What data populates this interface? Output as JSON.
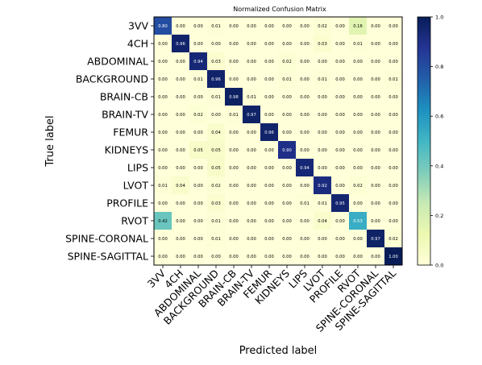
{
  "chart_data": {
    "type": "heatmap",
    "title": "Normalized Confusion Matrix",
    "xlabel": "Predicted label",
    "ylabel": "True label",
    "categories": [
      "3VV",
      "4CH",
      "ABDOMINAL",
      "BACKGROUND",
      "BRAIN-CB",
      "BRAIN-TV",
      "FEMUR",
      "KIDNEYS",
      "LIPS",
      "LVOT",
      "PROFILE",
      "RVOT",
      "SPINE-CORONAL",
      "SPINE-SAGITTAL"
    ],
    "matrix": [
      [
        0.8,
        0.0,
        0.0,
        0.01,
        0.0,
        0.0,
        0.0,
        0.0,
        0.0,
        0.02,
        0.0,
        0.16,
        0.0,
        0.0
      ],
      [
        0.0,
        0.96,
        0.0,
        0.0,
        0.0,
        0.0,
        0.0,
        0.0,
        0.0,
        0.03,
        0.0,
        0.01,
        0.0,
        0.0
      ],
      [
        0.0,
        0.0,
        0.94,
        0.03,
        0.0,
        0.0,
        0.0,
        0.02,
        0.0,
        0.0,
        0.0,
        0.0,
        0.0,
        0.0
      ],
      [
        0.0,
        0.0,
        0.01,
        0.96,
        0.0,
        0.0,
        0.0,
        0.01,
        0.0,
        0.01,
        0.0,
        0.0,
        0.0,
        0.01
      ],
      [
        0.0,
        0.0,
        0.0,
        0.01,
        0.98,
        0.01,
        0.0,
        0.0,
        0.0,
        0.0,
        0.0,
        0.0,
        0.0,
        0.0
      ],
      [
        0.0,
        0.0,
        0.02,
        0.0,
        0.01,
        0.97,
        0.0,
        0.0,
        0.0,
        0.0,
        0.0,
        0.0,
        0.0,
        0.0
      ],
      [
        0.0,
        0.0,
        0.0,
        0.04,
        0.0,
        0.0,
        0.96,
        0.0,
        0.0,
        0.0,
        0.0,
        0.0,
        0.0,
        0.0
      ],
      [
        0.0,
        0.0,
        0.05,
        0.05,
        0.0,
        0.0,
        0.0,
        0.9,
        0.0,
        0.0,
        0.0,
        0.0,
        0.0,
        0.0
      ],
      [
        0.0,
        0.0,
        0.0,
        0.05,
        0.0,
        0.0,
        0.0,
        0.0,
        0.94,
        0.0,
        0.0,
        0.0,
        0.0,
        0.0
      ],
      [
        0.01,
        0.04,
        0.0,
        0.02,
        0.0,
        0.0,
        0.0,
        0.0,
        0.0,
        0.92,
        0.0,
        0.02,
        0.0,
        0.0
      ],
      [
        0.0,
        0.0,
        0.0,
        0.03,
        0.0,
        0.0,
        0.0,
        0.0,
        0.01,
        0.01,
        0.95,
        0.0,
        0.0,
        0.0
      ],
      [
        0.42,
        0.0,
        0.0,
        0.01,
        0.0,
        0.0,
        0.0,
        0.0,
        0.0,
        0.04,
        0.0,
        0.53,
        0.0,
        0.0
      ],
      [
        0.0,
        0.0,
        0.0,
        0.01,
        0.0,
        0.0,
        0.0,
        0.0,
        0.0,
        0.0,
        0.0,
        0.0,
        0.97,
        0.02
      ],
      [
        0.0,
        0.0,
        0.0,
        0.0,
        0.0,
        0.0,
        0.0,
        0.0,
        0.0,
        0.0,
        0.0,
        0.0,
        0.0,
        1.0
      ]
    ],
    "value_range": [
      0,
      1
    ],
    "colormap": "YlGnBu",
    "colorbar": {
      "ticks": [
        "0.0",
        "0.2",
        "0.4",
        "0.6",
        "0.8",
        "1.0"
      ],
      "tick_values": [
        0,
        0.2,
        0.4,
        0.6,
        0.8,
        1.0
      ]
    },
    "colorbar_stops": [
      "#ffffd9",
      "#edf8b1",
      "#c7e9b4",
      "#7fcdbb",
      "#41b6c4",
      "#1d91c0",
      "#225ea8",
      "#253494",
      "#081d58"
    ],
    "grid": false,
    "legend": "colorbar-right"
  }
}
